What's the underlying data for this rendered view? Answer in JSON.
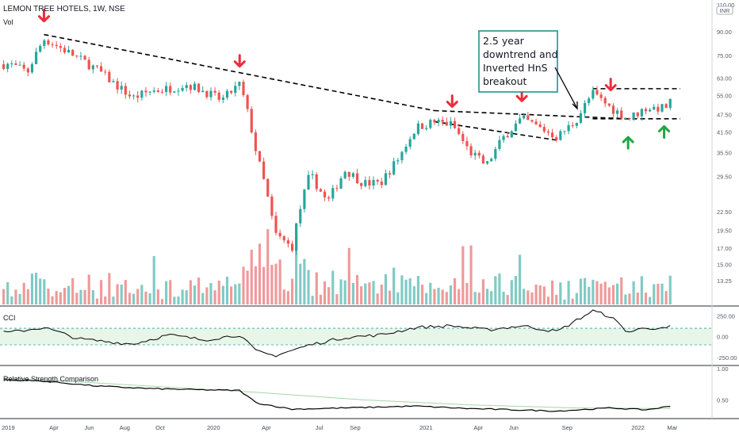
{
  "chart_data": [
    {
      "type": "candlestick",
      "title": "LEMON TREE HOTELS, 1W, NSE",
      "volume_label": "Vol",
      "currency_badge": "INR",
      "y_scale": "log",
      "ylim": [
        11.5,
        110
      ],
      "y_ticks": [
        "110.00",
        "90.00",
        "75.00",
        "63.00",
        "55.00",
        "47.50",
        "41.50",
        "35.50",
        "29.50",
        "22.50",
        "19.50",
        "17.00",
        "15.00",
        "13.25"
      ],
      "x_ticks": [
        "2019",
        "Apr",
        "Jun",
        "Aug",
        "Oct",
        "2020",
        "Apr",
        "Jul",
        "Sep",
        "2021",
        "Apr",
        "Jun",
        "Sep",
        "2022",
        "Mar"
      ],
      "annotation": [
        "2.5 year",
        "downtrend and",
        "Inverted HnS",
        "breakout"
      ],
      "colors": {
        "up": "#26a69a",
        "down": "#ef5350",
        "volume_up": "#80cbc4",
        "volume_down": "#ef9a9a",
        "arrow_down": "#ef2b3c",
        "arrow_up": "#23a447",
        "trendline": "#000000"
      },
      "close_keypoints": [
        {
          "date": "2019-01",
          "close": 70
        },
        {
          "date": "2019-02",
          "close": 66
        },
        {
          "date": "2019-03",
          "close": 85
        },
        {
          "date": "2019-05",
          "close": 73
        },
        {
          "date": "2019-06",
          "close": 67
        },
        {
          "date": "2019-07",
          "close": 60
        },
        {
          "date": "2019-08",
          "close": 54
        },
        {
          "date": "2019-09",
          "close": 57
        },
        {
          "date": "2019-10",
          "close": 58
        },
        {
          "date": "2019-11",
          "close": 60
        },
        {
          "date": "2019-12",
          "close": 57
        },
        {
          "date": "2020-01",
          "close": 53
        },
        {
          "date": "2020-02",
          "close": 60
        },
        {
          "date": "2020-03",
          "close": 35
        },
        {
          "date": "2020-04",
          "close": 19
        },
        {
          "date": "2020-05",
          "close": 17
        },
        {
          "date": "2020-06",
          "close": 30
        },
        {
          "date": "2020-07",
          "close": 24
        },
        {
          "date": "2020-08",
          "close": 31
        },
        {
          "date": "2020-09",
          "close": 28
        },
        {
          "date": "2020-10",
          "close": 28
        },
        {
          "date": "2020-11",
          "close": 34
        },
        {
          "date": "2020-12",
          "close": 43
        },
        {
          "date": "2021-01",
          "close": 45
        },
        {
          "date": "2021-02",
          "close": 44
        },
        {
          "date": "2021-03",
          "close": 36
        },
        {
          "date": "2021-04",
          "close": 32
        },
        {
          "date": "2021-05",
          "close": 40
        },
        {
          "date": "2021-06",
          "close": 46
        },
        {
          "date": "2021-07",
          "close": 43
        },
        {
          "date": "2021-08",
          "close": 40
        },
        {
          "date": "2021-09",
          "close": 45
        },
        {
          "date": "2021-10",
          "close": 56
        },
        {
          "date": "2021-11",
          "close": 50
        },
        {
          "date": "2021-12",
          "close": 46
        },
        {
          "date": "2022-01",
          "close": 50
        },
        {
          "date": "2022-02",
          "close": 50
        },
        {
          "date": "2022-03",
          "close": 55
        }
      ],
      "down_arrow_dates": [
        "2019-03",
        "2020-02",
        "2021-02",
        "2021-06",
        "2021-11"
      ],
      "up_arrow_dates": [
        "2021-12",
        "2022-02"
      ]
    },
    {
      "type": "line",
      "title": "CCI",
      "y_ticks": [
        "250.00",
        "0.00",
        "-250.00"
      ],
      "band": [
        -100,
        100
      ],
      "ylim": [
        -300,
        320
      ],
      "colors": {
        "line": "#000000",
        "band": "#e8f5e9",
        "band_edge": "#26a69a"
      },
      "keypoints": [
        {
          "date": "2019-01",
          "value": 50
        },
        {
          "date": "2019-03",
          "value": 110
        },
        {
          "date": "2019-05",
          "value": -30
        },
        {
          "date": "2019-08",
          "value": -90
        },
        {
          "date": "2019-10",
          "value": 20
        },
        {
          "date": "2019-12",
          "value": -40
        },
        {
          "date": "2020-02",
          "value": 20
        },
        {
          "date": "2020-03",
          "value": -180
        },
        {
          "date": "2020-04",
          "value": -230
        },
        {
          "date": "2020-06",
          "value": -100
        },
        {
          "date": "2020-08",
          "value": -10
        },
        {
          "date": "2020-10",
          "value": 20
        },
        {
          "date": "2020-12",
          "value": 110
        },
        {
          "date": "2021-02",
          "value": 130
        },
        {
          "date": "2021-04",
          "value": 80
        },
        {
          "date": "2021-06",
          "value": 130
        },
        {
          "date": "2021-08",
          "value": 60
        },
        {
          "date": "2021-10",
          "value": 310
        },
        {
          "date": "2021-11",
          "value": 240
        },
        {
          "date": "2021-12",
          "value": 50
        },
        {
          "date": "2022-01",
          "value": 110
        },
        {
          "date": "2022-02",
          "value": 90
        },
        {
          "date": "2022-03",
          "value": 170
        }
      ]
    },
    {
      "type": "line",
      "title": "Relative Strength Comparison",
      "y_ticks": [
        "1.00",
        "0.50"
      ],
      "ylim": [
        0.25,
        1.0
      ],
      "colors": {
        "line": "#000000",
        "ma": "#a5d6a7"
      },
      "series": [
        {
          "keypoints": [
            {
              "date": "2019-01",
              "value": 0.82
            },
            {
              "date": "2019-03",
              "value": 0.8
            },
            {
              "date": "2019-06",
              "value": 0.72
            },
            {
              "date": "2019-09",
              "value": 0.68
            },
            {
              "date": "2019-12",
              "value": 0.66
            },
            {
              "date": "2020-02",
              "value": 0.65
            },
            {
              "date": "2020-03",
              "value": 0.45
            },
            {
              "date": "2020-05",
              "value": 0.35
            },
            {
              "date": "2020-08",
              "value": 0.37
            },
            {
              "date": "2020-12",
              "value": 0.4
            },
            {
              "date": "2021-03",
              "value": 0.36
            },
            {
              "date": "2021-08",
              "value": 0.32
            },
            {
              "date": "2021-11",
              "value": 0.37
            },
            {
              "date": "2022-01",
              "value": 0.34
            },
            {
              "date": "2022-03",
              "value": 0.42
            }
          ]
        },
        {
          "keypoints": [
            {
              "date": "2019-01",
              "value": 0.85
            },
            {
              "date": "2019-09",
              "value": 0.72
            },
            {
              "date": "2020-03",
              "value": 0.62
            },
            {
              "date": "2020-09",
              "value": 0.5
            },
            {
              "date": "2021-03",
              "value": 0.42
            },
            {
              "date": "2021-09",
              "value": 0.37
            },
            {
              "date": "2022-03",
              "value": 0.36
            }
          ]
        }
      ]
    }
  ]
}
